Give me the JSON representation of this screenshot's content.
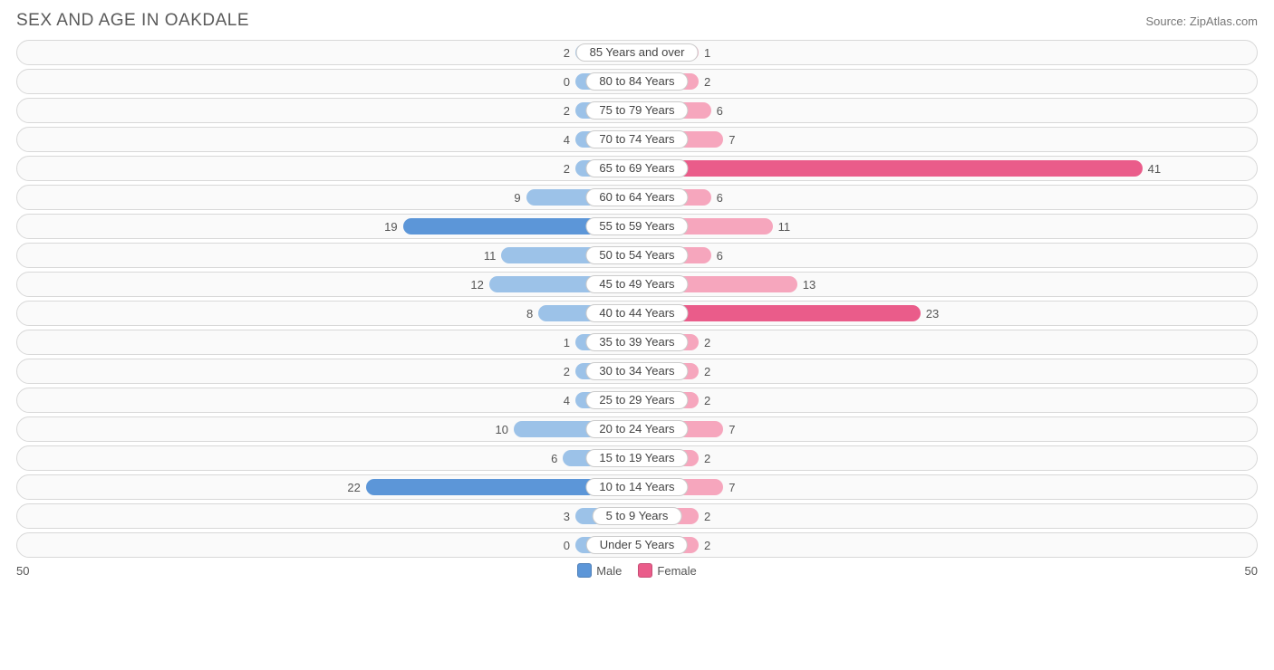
{
  "title": "SEX AND AGE IN OAKDALE",
  "source": "Source: ZipAtlas.com",
  "axis_max": 50,
  "axis_left_label": "50",
  "axis_right_label": "50",
  "colors": {
    "male_base": "#9cc2e8",
    "male_strong": "#5c96d8",
    "female_base": "#f6a6bd",
    "female_strong": "#ea5c8a",
    "row_bg": "#fafafa",
    "row_border": "#d8d8d8",
    "label_bg": "#ffffff",
    "label_border": "#cccccc",
    "text": "#555555"
  },
  "legend": {
    "male": "Male",
    "female": "Female"
  },
  "male_intense_threshold": 15,
  "female_intense_threshold": 15,
  "min_bar_units": 5,
  "rows": [
    {
      "label": "85 Years and over",
      "male": 2,
      "female": 1
    },
    {
      "label": "80 to 84 Years",
      "male": 0,
      "female": 2
    },
    {
      "label": "75 to 79 Years",
      "male": 2,
      "female": 6
    },
    {
      "label": "70 to 74 Years",
      "male": 4,
      "female": 7
    },
    {
      "label": "65 to 69 Years",
      "male": 2,
      "female": 41
    },
    {
      "label": "60 to 64 Years",
      "male": 9,
      "female": 6
    },
    {
      "label": "55 to 59 Years",
      "male": 19,
      "female": 11
    },
    {
      "label": "50 to 54 Years",
      "male": 11,
      "female": 6
    },
    {
      "label": "45 to 49 Years",
      "male": 12,
      "female": 13
    },
    {
      "label": "40 to 44 Years",
      "male": 8,
      "female": 23
    },
    {
      "label": "35 to 39 Years",
      "male": 1,
      "female": 2
    },
    {
      "label": "30 to 34 Years",
      "male": 2,
      "female": 2
    },
    {
      "label": "25 to 29 Years",
      "male": 4,
      "female": 2
    },
    {
      "label": "20 to 24 Years",
      "male": 10,
      "female": 7
    },
    {
      "label": "15 to 19 Years",
      "male": 6,
      "female": 2
    },
    {
      "label": "10 to 14 Years",
      "male": 22,
      "female": 7
    },
    {
      "label": "5 to 9 Years",
      "male": 3,
      "female": 2
    },
    {
      "label": "Under 5 Years",
      "male": 0,
      "female": 2
    }
  ]
}
